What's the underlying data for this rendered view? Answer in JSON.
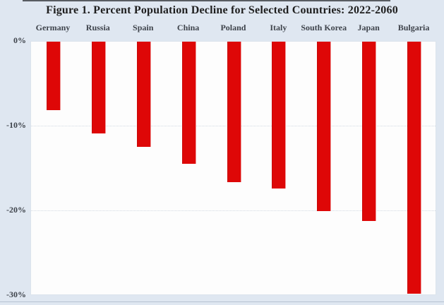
{
  "title": "Figure 1. Percent Population Decline for Selected Countries: 2022-2060",
  "chart_data": {
    "type": "bar",
    "orientation": "vertical-negative",
    "title": "Figure 1. Percent Population Decline for Selected Countries: 2022-2060",
    "categories": [
      "Germany",
      "Russia",
      "Spain",
      "China",
      "Poland",
      "Italy",
      "South Korea",
      "Japan",
      "Bulgaria"
    ],
    "values": [
      -8.1,
      -10.9,
      -12.5,
      -14.5,
      -16.7,
      -17.4,
      -20.1,
      -21.3,
      -29.9
    ],
    "unit": "%",
    "xlabel": "",
    "ylabel": "",
    "ylim": [
      -30,
      0
    ],
    "y_ticks": [
      {
        "label": "0%",
        "value": 0
      },
      {
        "label": "-10%",
        "value": -10
      },
      {
        "label": "-20%",
        "value": -20
      },
      {
        "label": "-30%",
        "value": -30
      }
    ],
    "grid": "horizontal dotted at -10% and -20%",
    "legend": "none",
    "category_label_position": "above plot"
  },
  "colors": {
    "background": "#dfe7f1",
    "plot_background": "#fdfdfd",
    "bar": "#de0707",
    "gridline": "#d3dae2",
    "title_text": "#1e1e1e",
    "label_text": "#3e434b",
    "top_frame_line": "#585c62",
    "bottom_rule": "#b7c3d3"
  }
}
